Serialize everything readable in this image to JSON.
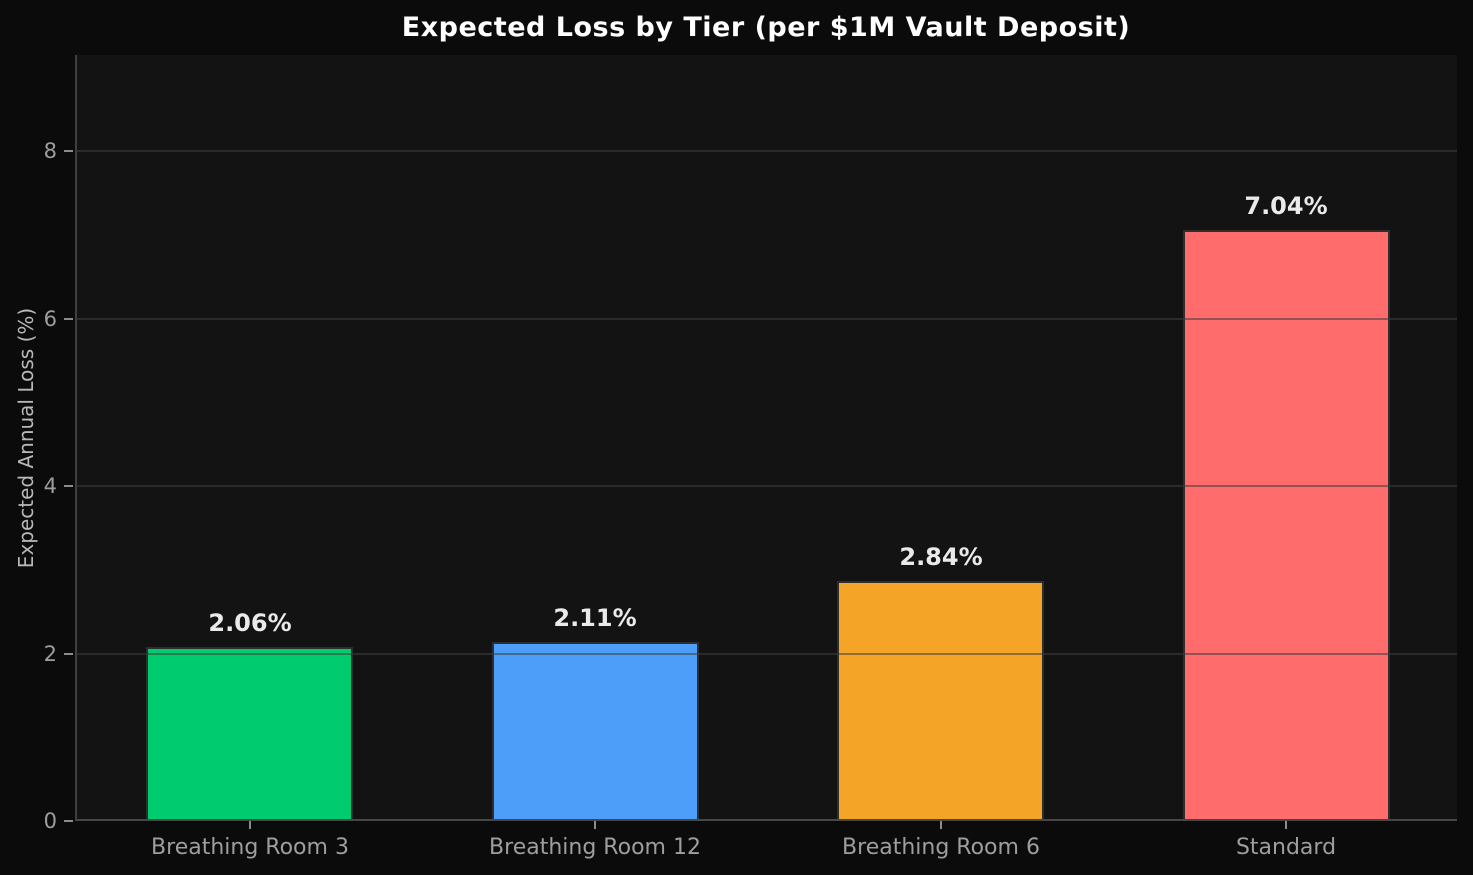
{
  "chart_data": {
    "type": "bar",
    "title": "Expected Loss by Tier (per $1M Vault Deposit)",
    "xlabel": "",
    "ylabel": "Expected Annual Loss (%)",
    "categories": [
      "Breathing Room 3",
      "Breathing Room 12",
      "Breathing Room 6",
      "Standard"
    ],
    "values": [
      2.06,
      2.11,
      2.84,
      7.04
    ],
    "value_labels": [
      "2.06%",
      "2.11%",
      "2.84%",
      "7.04%"
    ],
    "bar_colors": [
      "#00cb6e",
      "#4d9ef9",
      "#f4a426",
      "#ff6c6c"
    ],
    "ylim": [
      0,
      9.15
    ],
    "yticks": [
      0,
      2,
      4,
      6,
      8
    ],
    "grid": "horizontal-only",
    "legend": "none",
    "bar_width_fraction": 0.6,
    "colors": {
      "figure_background": "#0b0b0b",
      "axes_background": "#131313",
      "title_text": "#ffffff",
      "tick_text": "#9e9e9e",
      "axis_label_text": "#b8b8b8",
      "value_label_text": "#eaeaea",
      "spine": "#454545",
      "gridline": "#3e3e3e"
    }
  }
}
